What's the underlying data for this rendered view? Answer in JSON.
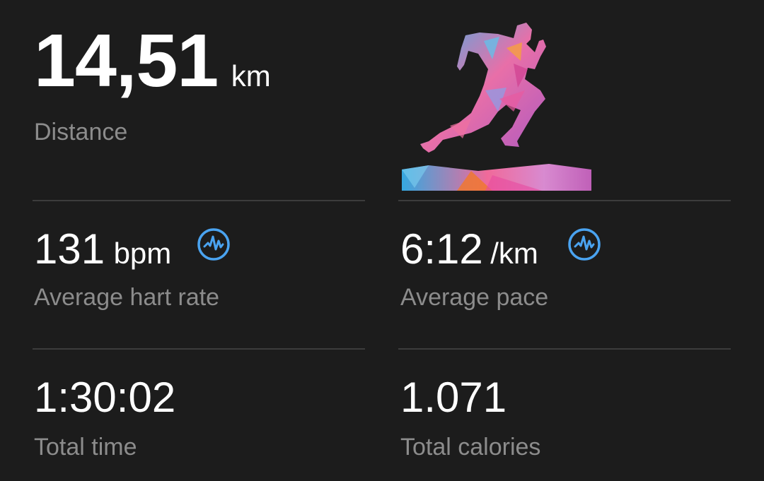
{
  "distance": {
    "value": "14,51",
    "unit": "km",
    "label": "Distance"
  },
  "heart_rate": {
    "value": "131",
    "unit": "bpm",
    "label": "Average hart rate",
    "icon": "activity-wave-icon"
  },
  "pace": {
    "value": "6:12",
    "unit": "/km",
    "label": "Average pace",
    "icon": "activity-wave-icon"
  },
  "time": {
    "value": "1:30:02",
    "label": "Total time"
  },
  "calories": {
    "value": "1.071",
    "label": "Total calories"
  },
  "colors": {
    "background": "#1c1c1c",
    "accent": "#4aa3f0",
    "label": "#8c8c8c",
    "divider": "#3c3c3c"
  }
}
